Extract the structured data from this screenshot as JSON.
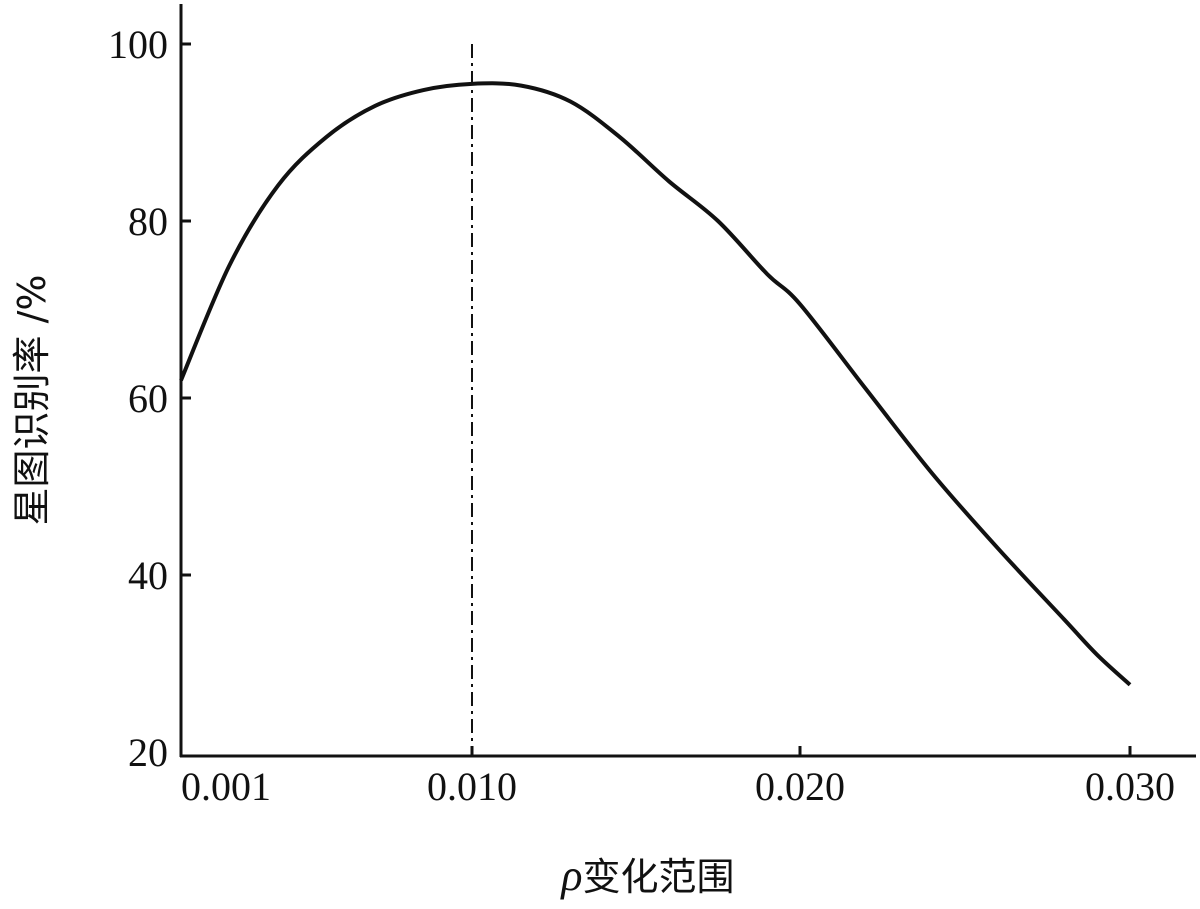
{
  "chart_data": {
    "type": "line",
    "title": "",
    "xlabel": "ρ变化范围",
    "xlabel_symbol": "ρ",
    "xlabel_text": "变化范围",
    "ylabel": "星图识别率 /%",
    "xlim": [
      0.001,
      0.032
    ],
    "ylim": [
      19,
      104
    ],
    "x_ticks": [
      0.001,
      0.01,
      0.02,
      0.03
    ],
    "x_tick_labels": [
      "0.001",
      "0.010",
      "0.020",
      "0.030"
    ],
    "y_ticks": [
      20,
      40,
      60,
      80,
      100
    ],
    "y_tick_labels": [
      "20",
      "40",
      "60",
      "80",
      "100"
    ],
    "grid": false,
    "line_color": "#111111",
    "reference_line": {
      "x": 0.01,
      "style": "dash-dot"
    },
    "series": [
      {
        "x": [
          0.001,
          0.0025,
          0.004,
          0.0055,
          0.007,
          0.0085,
          0.01,
          0.0115,
          0.013,
          0.0145,
          0.016,
          0.0175,
          0.019,
          0.02,
          0.022,
          0.024,
          0.026,
          0.028,
          0.029,
          0.03
        ],
        "y": [
          62,
          75,
          84,
          89.5,
          93,
          94.8,
          95.5,
          95.3,
          93.5,
          89.5,
          84.5,
          80,
          74,
          70.6,
          61,
          51.5,
          43,
          35,
          31,
          27.6
        ]
      }
    ]
  }
}
